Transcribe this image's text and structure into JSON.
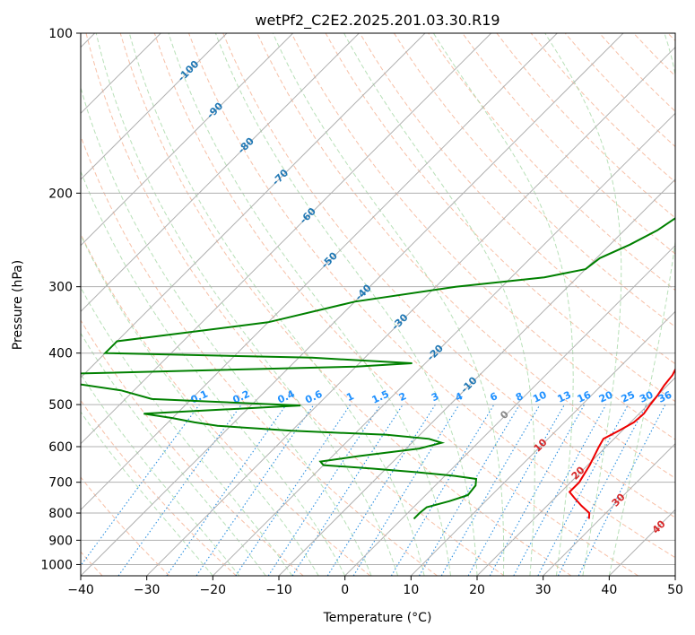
{
  "chart_data": {
    "type": "line",
    "title": "wetPf2_C2E2.2025.201.03.30.R19",
    "xlabel": "Temperature (°C)",
    "ylabel": "Pressure (hPa)",
    "xlim": [
      -40,
      50
    ],
    "ylim": [
      1050,
      100
    ],
    "y_scale": "log",
    "x_ticks": [
      -40,
      -30,
      -20,
      -10,
      0,
      10,
      20,
      30,
      40,
      50
    ],
    "y_ticks": [
      1000,
      900,
      800,
      700,
      600,
      500,
      400,
      300,
      200,
      100
    ],
    "grid": true,
    "colors": {
      "temperature": "#ee0000",
      "dewpoint": "#008000",
      "isotherm": "#b0b0b0",
      "dry_adiabat": "#f4a582",
      "moist_adiabat": "#a6d8a6",
      "mixing_ratio": "#2a8fe0",
      "isotherm_label": "#1f77b4",
      "mixing_label": "#1e90ff",
      "moist_label": "#d62728"
    },
    "isotherm_labels": [
      "-100",
      "-90",
      "-80",
      "-70",
      "-60",
      "-50",
      "-40",
      "-30",
      "-20",
      "-10",
      "0",
      "10",
      "20",
      "30",
      "40"
    ],
    "mixing_ratio_labels": [
      "0.1",
      "0.2",
      "0.4",
      "0.6",
      "1",
      "1.5",
      "2",
      "3",
      "4",
      "6",
      "8",
      "10",
      "13",
      "16",
      "20",
      "25",
      "30",
      "36"
    ],
    "series": [
      {
        "key": "temperature",
        "points": [
          [
            28.3,
            820
          ],
          [
            27.5,
            800
          ],
          [
            25.2,
            775
          ],
          [
            23,
            750
          ],
          [
            21.3,
            730
          ],
          [
            21.3,
            700
          ],
          [
            20.3,
            650
          ],
          [
            18.9,
            600
          ],
          [
            18.4,
            580
          ],
          [
            19.5,
            560
          ],
          [
            20.5,
            540
          ],
          [
            20.7,
            520
          ],
          [
            20.3,
            500
          ],
          [
            20,
            480
          ],
          [
            19.5,
            460
          ],
          [
            19.2,
            440
          ],
          [
            18.4,
            420
          ],
          [
            17.8,
            405
          ],
          [
            16.5,
            380
          ],
          [
            14,
            350
          ],
          [
            11,
            320
          ],
          [
            8.6,
            300
          ],
          [
            7,
            283
          ],
          [
            5.5,
            268
          ],
          [
            3.8,
            255
          ],
          [
            2,
            240
          ],
          [
            0,
            225
          ],
          [
            -1.8,
            210
          ],
          [
            -3.5,
            195
          ],
          [
            -5,
            180
          ],
          [
            -6,
            165
          ],
          [
            -7,
            150
          ],
          [
            -8.1,
            138
          ],
          [
            -9.5,
            128
          ],
          [
            -11,
            118
          ],
          [
            -12.6,
            112
          ],
          [
            -13.5,
            108
          ],
          [
            -14,
            104
          ],
          [
            -14.5,
            100
          ]
        ]
      },
      {
        "key": "dewpoint",
        "points": [
          [
            1.8,
            820
          ],
          [
            1.8,
            800
          ],
          [
            2,
            780
          ],
          [
            4.5,
            760
          ],
          [
            6.4,
            740
          ],
          [
            6.1,
            710
          ],
          [
            5.2,
            690
          ],
          [
            1,
            680
          ],
          [
            -5,
            670
          ],
          [
            -12,
            660
          ],
          [
            -20,
            650
          ],
          [
            -21,
            640
          ],
          [
            -16,
            625
          ],
          [
            -8,
            605
          ],
          [
            -5.5,
            590
          ],
          [
            -8,
            580
          ],
          [
            -15,
            570
          ],
          [
            -30,
            560
          ],
          [
            -38,
            552
          ],
          [
            -42,
            548
          ],
          [
            -46,
            540
          ],
          [
            -50,
            530
          ],
          [
            -55,
            520
          ],
          [
            -32.5,
            502
          ],
          [
            -56,
            488
          ],
          [
            -62,
            470
          ],
          [
            -80,
            440
          ],
          [
            -30,
            424
          ],
          [
            -22,
            418
          ],
          [
            -38,
            408
          ],
          [
            -70,
            400
          ],
          [
            -70,
            380
          ],
          [
            -50,
            350
          ],
          [
            -40,
            320
          ],
          [
            -27,
            300
          ],
          [
            -15,
            288
          ],
          [
            -10,
            278
          ],
          [
            -9.5,
            265
          ],
          [
            -7,
            250
          ],
          [
            -5,
            235
          ],
          [
            -3.5,
            215
          ],
          [
            -2.5,
            203
          ],
          [
            -2.3,
            192
          ],
          [
            -2.3,
            180
          ],
          [
            -2.3,
            170
          ],
          [
            -2.2,
            160
          ],
          [
            -2,
            150
          ],
          [
            -0.7,
            140
          ],
          [
            0.8,
            134
          ],
          [
            1.8,
            128
          ],
          [
            0,
            121
          ],
          [
            -2.5,
            116
          ],
          [
            -1,
            112
          ],
          [
            1,
            108
          ],
          [
            2.7,
            104
          ],
          [
            4.5,
            100
          ]
        ]
      }
    ]
  }
}
